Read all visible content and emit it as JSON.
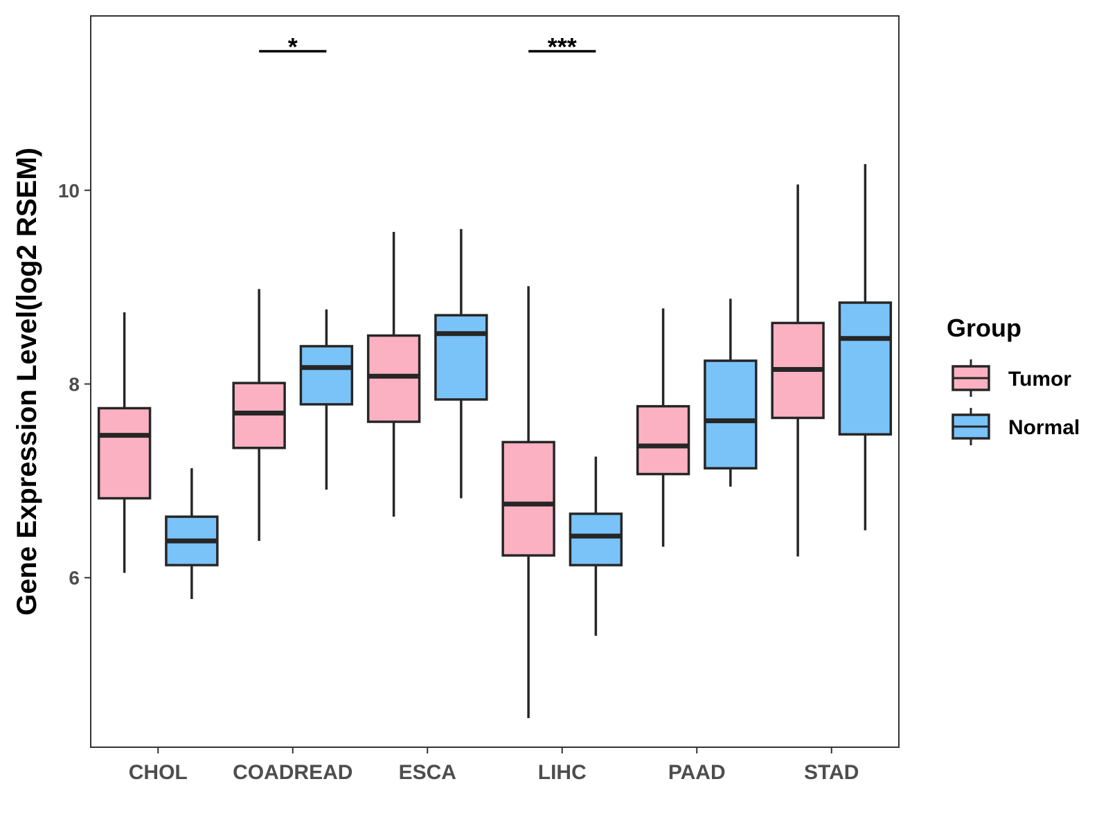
{
  "chart_data": {
    "type": "boxplot",
    "ylabel": "Gene Expression Level(log2 RSEM)",
    "xlabel": "",
    "ylim": [
      4.25,
      11.8
    ],
    "yticks": [
      6,
      8,
      10
    ],
    "categories": [
      "CHOL",
      "COADREAD",
      "ESCA",
      "LIHC",
      "PAAD",
      "STAD"
    ],
    "legend": {
      "title": "Group",
      "position": "right"
    },
    "series": [
      {
        "name": "Tumor",
        "color": "#FBB1C2",
        "boxes": [
          {
            "min": 6.05,
            "q1": 6.82,
            "median": 7.47,
            "q3": 7.75,
            "max": 8.74
          },
          {
            "min": 6.38,
            "q1": 7.34,
            "median": 7.7,
            "q3": 8.01,
            "max": 8.98
          },
          {
            "min": 6.63,
            "q1": 7.61,
            "median": 8.08,
            "q3": 8.5,
            "max": 9.57
          },
          {
            "min": 4.55,
            "q1": 6.23,
            "median": 6.76,
            "q3": 7.4,
            "max": 9.01
          },
          {
            "min": 6.32,
            "q1": 7.07,
            "median": 7.36,
            "q3": 7.77,
            "max": 8.78
          },
          {
            "min": 6.22,
            "q1": 7.65,
            "median": 8.15,
            "q3": 8.63,
            "max": 10.06
          }
        ]
      },
      {
        "name": "Normal",
        "color": "#7AC3F9",
        "boxes": [
          {
            "min": 5.78,
            "q1": 6.13,
            "median": 6.38,
            "q3": 6.63,
            "max": 7.13
          },
          {
            "min": 6.91,
            "q1": 7.79,
            "median": 8.17,
            "q3": 8.39,
            "max": 8.77
          },
          {
            "min": 6.82,
            "q1": 7.84,
            "median": 8.52,
            "q3": 8.71,
            "max": 9.6
          },
          {
            "min": 5.4,
            "q1": 6.13,
            "median": 6.43,
            "q3": 6.66,
            "max": 7.25
          },
          {
            "min": 6.94,
            "q1": 7.13,
            "median": 7.62,
            "q3": 8.24,
            "max": 8.88
          },
          {
            "min": 6.49,
            "q1": 7.48,
            "median": 8.47,
            "q3": 8.84,
            "max": 10.27
          }
        ]
      }
    ],
    "significance": [
      {
        "category": "COADREAD",
        "label": "*"
      },
      {
        "category": "LIHC",
        "label": "***"
      }
    ],
    "grid": false
  }
}
